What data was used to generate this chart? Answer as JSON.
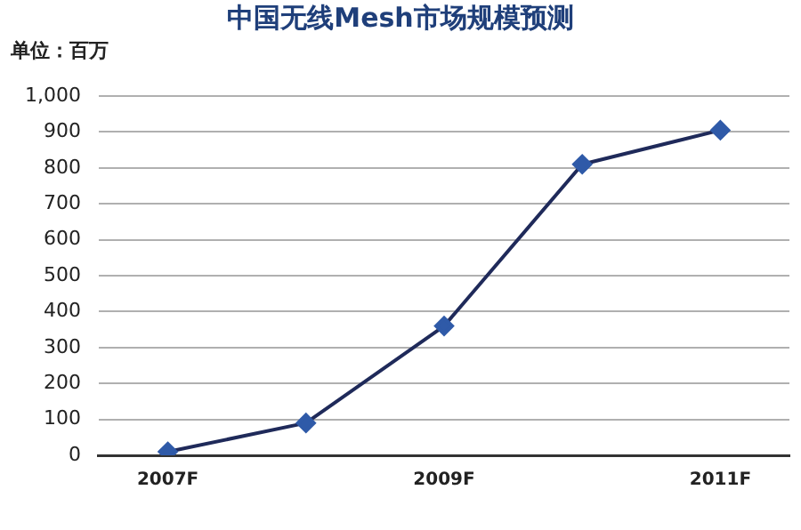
{
  "chart_data": {
    "type": "line",
    "title": "中国无线Mesh市场规模预测",
    "ylabel": "单位：百万",
    "categories": [
      "2007F",
      null,
      "2009F",
      null,
      "2011F"
    ],
    "series": [
      {
        "color": "#1f2a5a",
        "values": [
          10,
          90,
          360,
          810,
          905
        ]
      }
    ],
    "marker": "diamond",
    "line_style": "solid",
    "ylim": [
      0,
      1000
    ],
    "yticks": [
      {
        "value": 0,
        "label": "0"
      },
      {
        "value": 100,
        "label": "100"
      },
      {
        "value": 200,
        "label": "200"
      },
      {
        "value": 300,
        "label": "300"
      },
      {
        "value": 400,
        "label": "400"
      },
      {
        "value": 500,
        "label": "500"
      },
      {
        "value": 600,
        "label": "600"
      },
      {
        "value": 700,
        "label": "700"
      },
      {
        "value": 800,
        "label": "800"
      },
      {
        "value": 900,
        "label": "900"
      },
      {
        "value": 1000,
        "label": "1,000"
      }
    ],
    "grid": "y",
    "legend": false
  }
}
